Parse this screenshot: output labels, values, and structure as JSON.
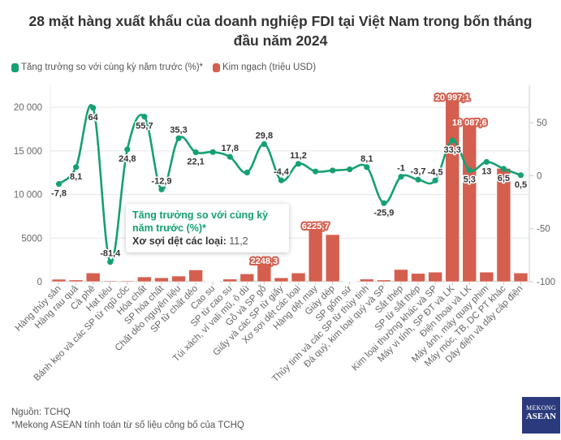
{
  "title_line1": "28 mặt hàng xuất khẩu của doanh nghiệp FDI tại Việt Nam trong bốn tháng",
  "title_line2": "đầu năm 2024",
  "legend": {
    "growth": "Tăng trưởng so với cùng kỳ năm trước (%)*",
    "value": "Kim ngạch (triệu USD)"
  },
  "colors": {
    "growth": "#15a074",
    "value": "#d45f4f",
    "grid": "#e6e6e6"
  },
  "tooltip": {
    "title": "Tăng trưởng so với cùng kỳ năm trước (%)*",
    "key": "Xơ sợi dệt các loại:",
    "value": "11,2"
  },
  "footer": {
    "source": "Nguồn: TCHQ",
    "note": "*Mekong ASEAN tính toán từ số liệu công bố của TCHQ"
  },
  "logo": {
    "line1": "MEKONG",
    "line2": "ASEAN"
  },
  "chart_data": {
    "type": "bar+line",
    "title": "28 mặt hàng xuất khẩu của doanh nghiệp FDI tại Việt Nam trong bốn tháng đầu năm 2024",
    "categories": [
      "Hàng thủy sản",
      "Hàng rau quả",
      "Cà phê",
      "Hạt tiêu",
      "Bánh kẹo và các SP từ ngũ cốc",
      "Hóa chất",
      "SP hóa chất",
      "Chất dẻo nguyên liệu",
      "SP từ chất dẻo",
      "Cao su",
      "SP từ cao su",
      "Túi xách, ví vali mũ, ô dù",
      "Gỗ và SP gỗ",
      "Giấy và các SP từ giấy",
      "Xơ sợi dệt các loại",
      "Hàng dệt may",
      "Giày dép",
      "SP gốm sứ",
      "Thủy tinh và các SP từ thủy tinh",
      "Đá quý, kim loại quý và SP",
      "Sắt thép",
      "SP từ sắt thép",
      "Kim loại thường khác và SP",
      "Máy vi tính, SP ĐT và LK",
      "Điện thoại và LK",
      "Máy ảnh, máy quay phim",
      "Máy móc, TB, DC PT khác",
      "Dây điện và dây cáp điện"
    ],
    "series": [
      {
        "name": "Kim ngạch (triệu USD)",
        "type": "bar",
        "axis": "left",
        "values": [
          280,
          200,
          1000,
          100,
          100,
          550,
          450,
          650,
          1350,
          30,
          300,
          900,
          2248.3,
          450,
          1000,
          6225.7,
          5400,
          50,
          300,
          200,
          1400,
          950,
          1100,
          20997.1,
          18087.6,
          1100,
          13000,
          1000
        ],
        "labels": [
          null,
          null,
          null,
          null,
          null,
          null,
          null,
          null,
          null,
          null,
          null,
          null,
          "2248,3",
          null,
          null,
          "6225,7",
          null,
          null,
          null,
          null,
          null,
          null,
          null,
          "20 997,1",
          "18 087,6",
          null,
          null,
          null
        ]
      },
      {
        "name": "Tăng trưởng so với cùng kỳ năm trước (%)*",
        "type": "line",
        "axis": "right",
        "values": [
          -7.8,
          8.1,
          64,
          -81.4,
          24.8,
          55.7,
          -12.9,
          35.3,
          22.1,
          22.3,
          17.8,
          3,
          29.8,
          -4.4,
          11.2,
          4,
          5,
          6,
          8.1,
          -25.9,
          -1,
          -3.7,
          -4.5,
          33.3,
          5.3,
          13,
          6.5,
          0.5
        ],
        "labels": [
          "-7,8",
          "8,1",
          "64",
          "-81,4",
          "24,8",
          "55,7",
          "-12,9",
          "35,3",
          "22,1",
          null,
          "17,8",
          null,
          "29,8",
          "-4,4",
          "11,2",
          null,
          null,
          null,
          "8,1",
          "-25,9",
          "-1",
          "-3,7",
          "-4,5",
          "33,3",
          "5,3",
          "13",
          "6,5",
          "0,5"
        ]
      }
    ],
    "y_left": {
      "ticks": [
        "0",
        "5000",
        "10 000",
        "15 000",
        "20 000"
      ],
      "tick_values": [
        0,
        5000,
        10000,
        15000,
        20000
      ],
      "range": [
        0,
        21600
      ]
    },
    "y_right": {
      "ticks": [
        "-100",
        "-50",
        "0",
        "50"
      ],
      "tick_values": [
        -100,
        -50,
        0,
        50
      ],
      "range": [
        -100,
        77.7
      ]
    },
    "grid": true,
    "legend_position": "top-left"
  }
}
